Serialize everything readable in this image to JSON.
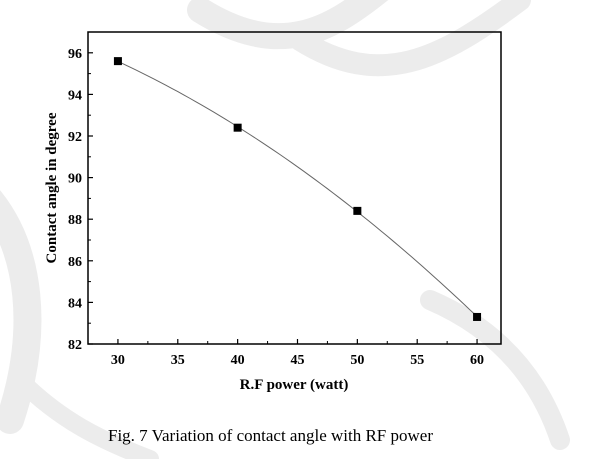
{
  "chart_data": {
    "type": "line",
    "title": "",
    "xlabel": "R.F power (watt)",
    "ylabel": "Contact angle in degree",
    "xlim": [
      27.5,
      62
    ],
    "ylim": [
      82,
      97
    ],
    "xticks": [
      30,
      35,
      40,
      45,
      50,
      55,
      60
    ],
    "yticks": [
      82,
      84,
      86,
      88,
      90,
      92,
      94,
      96
    ],
    "grid": false,
    "legend": "none",
    "series": [
      {
        "x": [
          30,
          40,
          50,
          60
        ],
        "y": [
          95.6,
          92.4,
          88.4,
          83.3
        ],
        "marker": "square",
        "line": "smooth-fit",
        "color": "#000000"
      }
    ]
  },
  "caption": "Fig. 7 Variation of contact angle with RF power"
}
